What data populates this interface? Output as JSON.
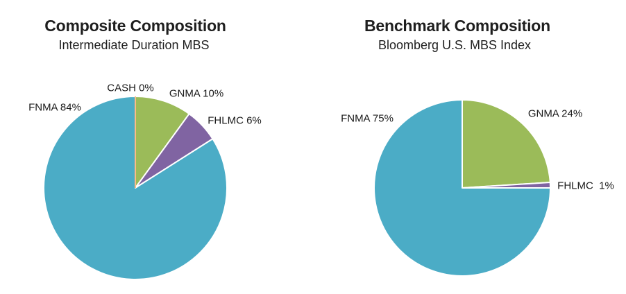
{
  "figure": {
    "background": "#ffffff"
  },
  "palette": {
    "fnma_teal": "#4BACC6",
    "gnma_green": "#9BBB59",
    "fhlmc_purple": "#8064A2",
    "cash_orange": "#F79646",
    "slice_border": "#ffffff",
    "text": "#1a1a1a"
  },
  "chart_data": [
    {
      "type": "pie",
      "title": "Composite Composition",
      "subtitle": "Intermediate Duration MBS",
      "categories": [
        "CASH",
        "GNMA",
        "FHLMC",
        "FNMA"
      ],
      "values": [
        0,
        10,
        6,
        84
      ],
      "labels": [
        "CASH 0%",
        "GNMA 10%",
        "FHLMC 6%",
        "FNMA 84%"
      ],
      "colors": [
        "#F79646",
        "#9BBB59",
        "#8064A2",
        "#4BACC6"
      ],
      "start_angle_deg": 0,
      "direction": "clockwise",
      "legend": "none",
      "label_style": "category-plus-percent, outside"
    },
    {
      "type": "pie",
      "title": "Benchmark Composition",
      "subtitle": "Bloomberg U.S. MBS Index",
      "categories": [
        "GNMA",
        "FHLMC",
        "FNMA"
      ],
      "values": [
        24,
        1,
        75
      ],
      "labels": [
        "GNMA 24%",
        "FHLMC  1%",
        "FNMA 75%"
      ],
      "colors": [
        "#9BBB59",
        "#8064A2",
        "#4BACC6"
      ],
      "start_angle_deg": 0,
      "direction": "clockwise",
      "legend": "none",
      "label_style": "category-plus-percent, outside"
    }
  ]
}
